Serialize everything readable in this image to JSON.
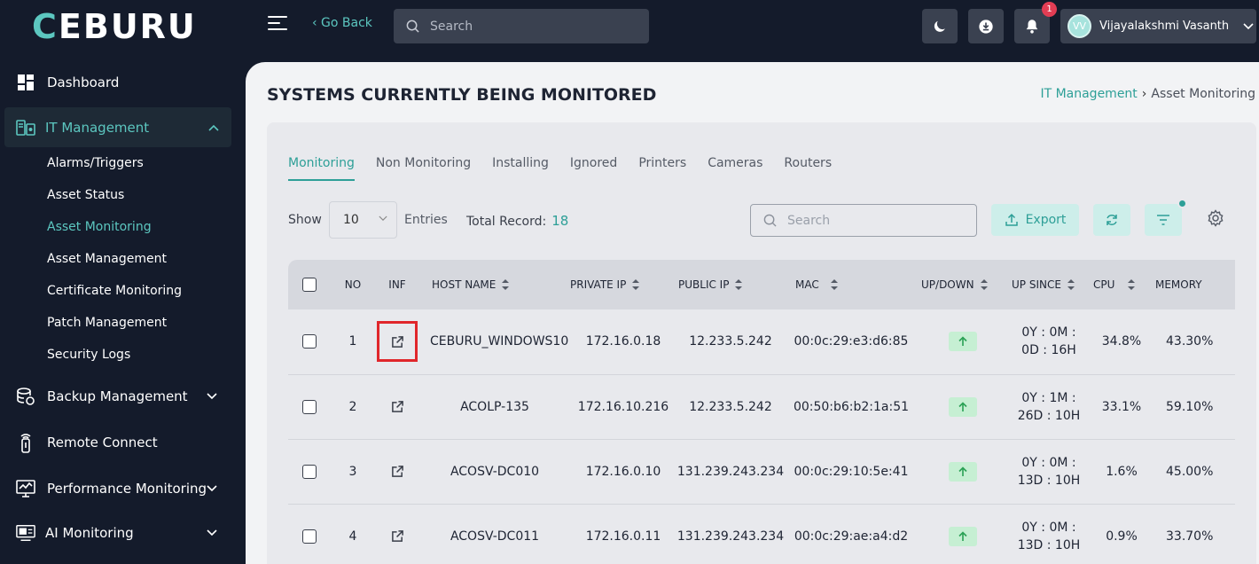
{
  "brand": {
    "logo_first": "C",
    "logo_rest": "EBURU"
  },
  "topbar": {
    "go_back": "‹ Go Back",
    "search_placeholder": "Search",
    "notification_count": "1",
    "user_initials": "VV",
    "user_name": "Vijayalakshmi Vasanth"
  },
  "sidebar": {
    "items": [
      {
        "label": "Dashboard",
        "icon": "dashboard-icon"
      },
      {
        "label": "IT Management",
        "icon": "it-management-icon"
      },
      {
        "label": "Backup Management",
        "icon": "backup-icon"
      },
      {
        "label": "Remote Connect",
        "icon": "remote-icon"
      },
      {
        "label": "Performance Monitoring",
        "icon": "performance-icon"
      },
      {
        "label": "AI Monitoring",
        "icon": "ai-monitor-icon"
      }
    ],
    "subitems": [
      "Alarms/Triggers",
      "Asset Status",
      "Asset Monitoring",
      "Asset Management",
      "Certificate Monitoring",
      "Patch Management",
      "Security Logs"
    ]
  },
  "page": {
    "title": "SYSTEMS CURRENTLY BEING MONITORED",
    "breadcrumb_parent": "IT Management",
    "breadcrumb_current": "Asset Monitoring"
  },
  "tabs": [
    "Monitoring",
    "Non Monitoring",
    "Installing",
    "Ignored",
    "Printers",
    "Cameras",
    "Routers"
  ],
  "toolbar": {
    "show_label": "Show",
    "page_size": "10",
    "entries_label": "Entries",
    "total_label": "Total Record:",
    "total_value": "18",
    "search_placeholder": "Search",
    "export_label": "Export"
  },
  "table": {
    "columns": [
      "NO",
      "INF",
      "HOST NAME",
      "PRIVATE IP",
      "PUBLIC IP",
      "MAC",
      "UP/DOWN",
      "UP SINCE",
      "CPU",
      "MEMORY"
    ],
    "rows": [
      {
        "no": "1",
        "host": "CEBURU_WINDOWS10",
        "private_ip": "172.16.0.18",
        "public_ip": "12.233.5.242",
        "mac": "00:0c:29:e3:d6:85",
        "since1": "0Y : 0M :",
        "since2": "0D : 16H",
        "cpu": "34.8%",
        "memory": "43.30%"
      },
      {
        "no": "2",
        "host": "ACOLP-135",
        "private_ip": "172.16.10.216",
        "public_ip": "12.233.5.242",
        "mac": "00:50:b6:b2:1a:51",
        "since1": "0Y : 1M :",
        "since2": "26D : 10H",
        "cpu": "33.1%",
        "memory": "59.10%"
      },
      {
        "no": "3",
        "host": "ACOSV-DC010",
        "private_ip": "172.16.0.10",
        "public_ip": "131.239.243.234",
        "mac": "00:0c:29:10:5e:41",
        "since1": "0Y : 0M :",
        "since2": "13D : 10H",
        "cpu": "1.6%",
        "memory": "45.00%"
      },
      {
        "no": "4",
        "host": "ACOSV-DC011",
        "private_ip": "172.16.0.11",
        "public_ip": "131.239.243.234",
        "mac": "00:0c:29:ae:a4:d2",
        "since1": "0Y : 0M :",
        "since2": "13D : 10H",
        "cpu": "0.9%",
        "memory": "33.70%"
      }
    ]
  },
  "colors": {
    "accent": "#2d9f97",
    "sidebar_bg": "#141b2b",
    "highlight": "#e0262b",
    "up_badge": "#c6efd3"
  }
}
